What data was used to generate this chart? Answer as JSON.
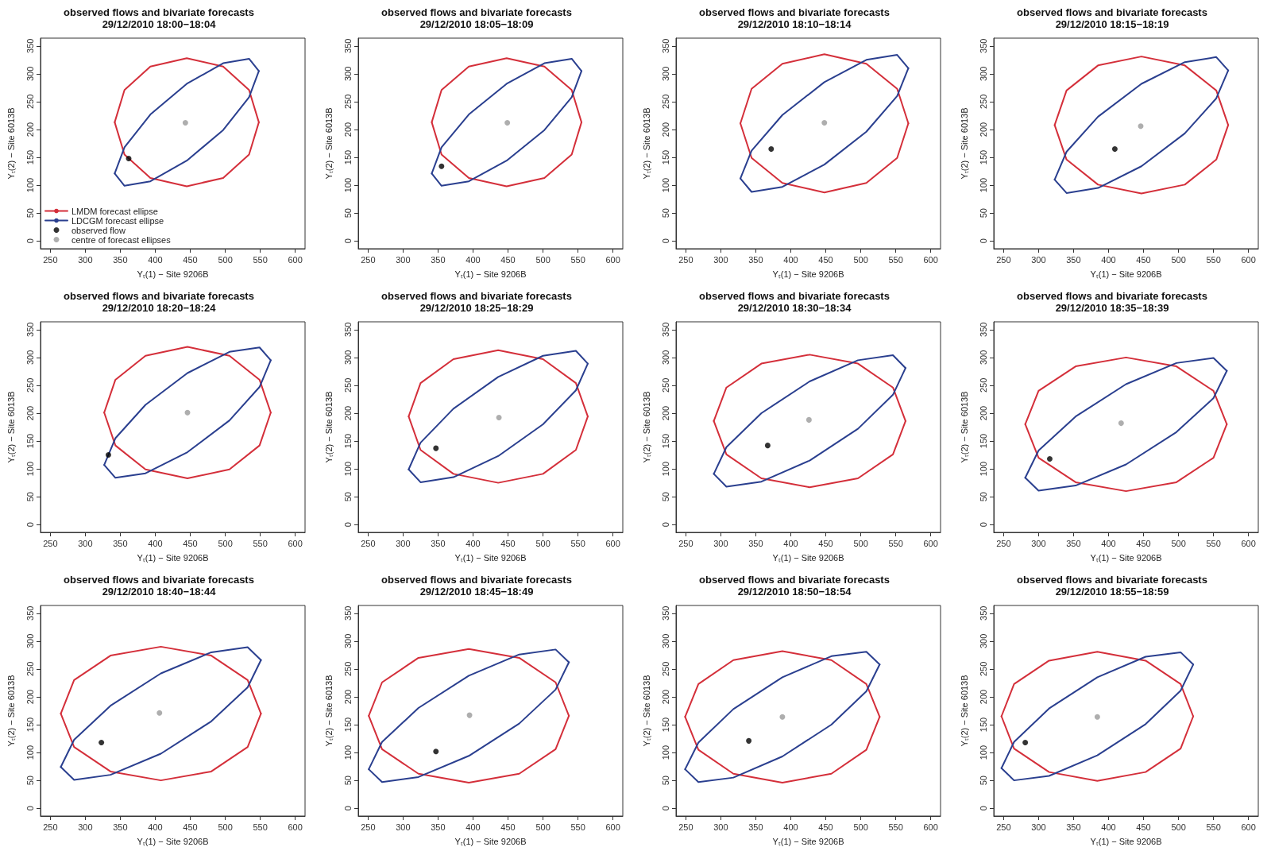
{
  "chart_data": [
    {
      "type": "line",
      "title": "observed flows and bivariate forecasts",
      "subtitle": "29/12/2010 18:00−18:04",
      "xlabel": "Yₜ(1) − Site 9206B",
      "ylabel": "Yₜ(2) − Site 6013B",
      "xlim": [
        236,
        614
      ],
      "ylim": [
        -14,
        364
      ],
      "xticks": [
        250,
        300,
        350,
        400,
        450,
        500,
        550,
        600
      ],
      "yticks": [
        0,
        50,
        100,
        150,
        200,
        250,
        300,
        350
      ],
      "grid": false,
      "marker": "none",
      "legend": "bottom left",
      "series": [
        {
          "name": "LMDM forecast ellipse",
          "color": "#d42f3a",
          "x": [
            548,
            534,
            497,
            445,
            393,
            356,
            342
          ],
          "values": [
            213,
            271,
            313,
            328,
            313,
            271,
            213
          ]
        },
        {
          "color": "#d42f3a",
          "x": [
            342,
            356,
            393,
            445,
            497,
            534,
            548
          ],
          "values": [
            213,
            155,
            113,
            98,
            113,
            155,
            213
          ]
        },
        {
          "name": "LDCGM forecast ellipse",
          "color": "#2a3f8f",
          "x": [
            548,
            534,
            497,
            445,
            393,
            356,
            342
          ],
          "values": [
            305,
            327,
            319,
            282,
            227,
            168,
            121
          ]
        },
        {
          "color": "#2a3f8f",
          "x": [
            342,
            356,
            393,
            445,
            497,
            534,
            548
          ],
          "values": [
            121,
            99,
            107,
            144,
            199,
            258,
            305
          ]
        },
        {
          "name": "observed flow",
          "type": "scatter",
          "marker": "circle",
          "color": "#000000",
          "x": [
            362
          ],
          "values": [
            148
          ]
        },
        {
          "name": "centre of forecast ellipses",
          "type": "scatter",
          "marker": "circle",
          "color": "#9a9a9a",
          "x": [
            443
          ],
          "values": [
            212
          ]
        }
      ]
    },
    {
      "type": "line",
      "title": "observed flows and bivariate forecasts",
      "subtitle": "29/12/2010 18:05−18:09",
      "xlabel": "Yₜ(1) − Site 9206B",
      "ylabel": "Yₜ(2) − Site 6013B",
      "xlim": [
        236,
        614
      ],
      "ylim": [
        -14,
        364
      ],
      "xticks": [
        250,
        300,
        350,
        400,
        450,
        500,
        550,
        600
      ],
      "yticks": [
        0,
        50,
        100,
        150,
        200,
        250,
        300,
        350
      ],
      "grid": false,
      "marker": "none",
      "series": [
        {
          "color": "#d42f3a",
          "x": [
            555,
            541,
            502,
            448,
            394,
            355,
            341
          ],
          "values": [
            213,
            271,
            313,
            328,
            313,
            271,
            213
          ]
        },
        {
          "color": "#d42f3a",
          "x": [
            341,
            355,
            394,
            448,
            502,
            541,
            555
          ],
          "values": [
            213,
            155,
            113,
            98,
            113,
            155,
            213
          ]
        },
        {
          "color": "#2a3f8f",
          "x": [
            555,
            541,
            502,
            448,
            394,
            355,
            341
          ],
          "values": [
            305,
            327,
            319,
            282,
            227,
            168,
            121
          ]
        },
        {
          "color": "#2a3f8f",
          "x": [
            341,
            355,
            394,
            448,
            502,
            541,
            555
          ],
          "values": [
            121,
            99,
            107,
            144,
            199,
            258,
            305
          ]
        },
        {
          "type": "scatter",
          "marker": "circle",
          "color": "#000000",
          "x": [
            355
          ],
          "values": [
            134
          ]
        },
        {
          "type": "scatter",
          "marker": "circle",
          "color": "#9a9a9a",
          "x": [
            449
          ],
          "values": [
            212
          ]
        }
      ]
    },
    {
      "type": "line",
      "title": "observed flows and bivariate forecasts",
      "subtitle": "29/12/2010 18:10−18:14",
      "xlabel": "Yₜ(1) − Site 9206B",
      "ylabel": "Yₜ(2) − Site 6013B",
      "xlim": [
        236,
        614
      ],
      "ylim": [
        -14,
        364
      ],
      "xticks": [
        250,
        300,
        350,
        400,
        450,
        500,
        550,
        600
      ],
      "yticks": [
        0,
        50,
        100,
        150,
        200,
        250,
        300,
        350
      ],
      "grid": false,
      "marker": "none",
      "series": [
        {
          "color": "#d42f3a",
          "x": [
            568,
            552,
            508,
            448,
            388,
            344,
            328
          ],
          "values": [
            211,
            273,
            318,
            335,
            318,
            273,
            211
          ]
        },
        {
          "color": "#d42f3a",
          "x": [
            328,
            344,
            388,
            448,
            508,
            552,
            568
          ],
          "values": [
            211,
            149,
            104,
            87,
            104,
            149,
            211
          ]
        },
        {
          "color": "#2a3f8f",
          "x": [
            568,
            552,
            508,
            448,
            388,
            344,
            328
          ],
          "values": [
            310,
            334,
            325,
            285,
            226,
            162,
            112
          ]
        },
        {
          "color": "#2a3f8f",
          "x": [
            328,
            344,
            388,
            448,
            508,
            552,
            568
          ],
          "values": [
            112,
            88,
            97,
            137,
            196,
            260,
            310
          ]
        },
        {
          "type": "scatter",
          "marker": "circle",
          "color": "#000000",
          "x": [
            372
          ],
          "values": [
            165
          ]
        },
        {
          "type": "scatter",
          "marker": "circle",
          "color": "#9a9a9a",
          "x": [
            448
          ],
          "values": [
            212
          ]
        }
      ]
    },
    {
      "type": "line",
      "title": "observed flows and bivariate forecasts",
      "subtitle": "29/12/2010 18:15−18:19",
      "xlabel": "Yₜ(1) − Site 9206B",
      "ylabel": "Yₜ(2) − Site 6013B",
      "xlim": [
        236,
        614
      ],
      "ylim": [
        -14,
        364
      ],
      "xticks": [
        250,
        300,
        350,
        400,
        450,
        500,
        550,
        600
      ],
      "yticks": [
        0,
        50,
        100,
        150,
        200,
        250,
        300,
        350
      ],
      "grid": false,
      "marker": "none",
      "series": [
        {
          "color": "#d42f3a",
          "x": [
            571,
            554,
            509,
            447,
            385,
            340,
            323
          ],
          "values": [
            208,
            270,
            315,
            331,
            315,
            270,
            208
          ]
        },
        {
          "color": "#d42f3a",
          "x": [
            323,
            340,
            385,
            447,
            509,
            554,
            571
          ],
          "values": [
            208,
            146,
            101,
            85,
            101,
            146,
            208
          ]
        },
        {
          "color": "#2a3f8f",
          "x": [
            571,
            554,
            509,
            447,
            385,
            340,
            323
          ],
          "values": [
            306,
            330,
            321,
            282,
            223,
            160,
            110
          ]
        },
        {
          "color": "#2a3f8f",
          "x": [
            323,
            340,
            385,
            447,
            509,
            554,
            571
          ],
          "values": [
            110,
            86,
            95,
            134,
            193,
            256,
            306
          ]
        },
        {
          "type": "scatter",
          "marker": "circle",
          "color": "#000000",
          "x": [
            409
          ],
          "values": [
            165
          ]
        },
        {
          "type": "scatter",
          "marker": "circle",
          "color": "#9a9a9a",
          "x": [
            446
          ],
          "values": [
            206
          ]
        }
      ]
    },
    {
      "type": "line",
      "title": "observed flows and bivariate forecasts",
      "subtitle": "29/12/2010 18:20−18:24",
      "xlabel": "Yₜ(1) − Site 9206B",
      "ylabel": "Yₜ(2) − Site 6013B",
      "xlim": [
        236,
        614
      ],
      "ylim": [
        -14,
        364
      ],
      "xticks": [
        250,
        300,
        350,
        400,
        450,
        500,
        550,
        600
      ],
      "yticks": [
        0,
        50,
        100,
        150,
        200,
        250,
        300,
        350
      ],
      "grid": false,
      "marker": "none",
      "series": [
        {
          "color": "#d42f3a",
          "x": [
            565,
            549,
            506,
            446,
            386,
            343,
            327
          ],
          "values": [
            201,
            260,
            303,
            319,
            303,
            260,
            201
          ]
        },
        {
          "color": "#d42f3a",
          "x": [
            327,
            343,
            386,
            446,
            506,
            549,
            565
          ],
          "values": [
            201,
            142,
            99,
            83,
            99,
            142,
            201
          ]
        },
        {
          "color": "#2a3f8f",
          "x": [
            565,
            549,
            506,
            446,
            386,
            343,
            327
          ],
          "values": [
            295,
            318,
            310,
            272,
            215,
            155,
            107
          ]
        },
        {
          "color": "#2a3f8f",
          "x": [
            327,
            343,
            386,
            446,
            506,
            549,
            565
          ],
          "values": [
            107,
            84,
            92,
            130,
            187,
            247,
            295
          ]
        },
        {
          "type": "scatter",
          "marker": "circle",
          "color": "#000000",
          "x": [
            333
          ],
          "values": [
            125
          ]
        },
        {
          "type": "scatter",
          "marker": "circle",
          "color": "#9a9a9a",
          "x": [
            446
          ],
          "values": [
            201
          ]
        }
      ]
    },
    {
      "type": "line",
      "title": "observed flows and bivariate forecasts",
      "subtitle": "29/12/2010 18:25−18:29",
      "xlabel": "Yₜ(1) − Site 9206B",
      "ylabel": "Yₜ(2) − Site 6013B",
      "xlim": [
        236,
        614
      ],
      "ylim": [
        -14,
        364
      ],
      "xticks": [
        250,
        300,
        350,
        400,
        450,
        500,
        550,
        600
      ],
      "yticks": [
        0,
        50,
        100,
        150,
        200,
        250,
        300,
        350
      ],
      "grid": false,
      "marker": "none",
      "series": [
        {
          "color": "#d42f3a",
          "x": [
            564,
            547,
            500,
            436,
            372,
            325,
            308
          ],
          "values": [
            194,
            254,
            297,
            313,
            297,
            254,
            194
          ]
        },
        {
          "color": "#d42f3a",
          "x": [
            308,
            325,
            372,
            436,
            500,
            547,
            564
          ],
          "values": [
            194,
            134,
            91,
            75,
            91,
            134,
            194
          ]
        },
        {
          "color": "#2a3f8f",
          "x": [
            564,
            547,
            500,
            436,
            372,
            325,
            308
          ],
          "values": [
            289,
            312,
            303,
            265,
            208,
            147,
            99
          ]
        },
        {
          "color": "#2a3f8f",
          "x": [
            308,
            325,
            372,
            436,
            500,
            547,
            564
          ],
          "values": [
            99,
            76,
            85,
            123,
            180,
            241,
            289
          ]
        },
        {
          "type": "scatter",
          "marker": "circle",
          "color": "#000000",
          "x": [
            347
          ],
          "values": [
            137
          ]
        },
        {
          "type": "scatter",
          "marker": "circle",
          "color": "#9a9a9a",
          "x": [
            437
          ],
          "values": [
            192
          ]
        }
      ]
    },
    {
      "type": "line",
      "title": "observed flows and bivariate forecasts",
      "subtitle": "29/12/2010 18:30−18:34",
      "xlabel": "Yₜ(1) − Site 9206B",
      "ylabel": "Yₜ(2) − Site 6013B",
      "xlim": [
        236,
        614
      ],
      "ylim": [
        -14,
        364
      ],
      "xticks": [
        250,
        300,
        350,
        400,
        450,
        500,
        550,
        600
      ],
      "yticks": [
        0,
        50,
        100,
        150,
        200,
        250,
        300,
        350
      ],
      "grid": false,
      "marker": "none",
      "series": [
        {
          "color": "#d42f3a",
          "x": [
            564,
            546,
            496,
            427,
            358,
            308,
            290
          ],
          "values": [
            186,
            246,
            289,
            305,
            289,
            246,
            186
          ]
        },
        {
          "color": "#d42f3a",
          "x": [
            290,
            308,
            358,
            427,
            496,
            546,
            564
          ],
          "values": [
            186,
            126,
            83,
            67,
            83,
            126,
            186
          ]
        },
        {
          "color": "#2a3f8f",
          "x": [
            564,
            546,
            496,
            427,
            358,
            308,
            290
          ],
          "values": [
            281,
            304,
            295,
            257,
            200,
            139,
            91
          ]
        },
        {
          "color": "#2a3f8f",
          "x": [
            290,
            308,
            358,
            427,
            496,
            546,
            564
          ],
          "values": [
            91,
            68,
            77,
            115,
            172,
            233,
            281
          ]
        },
        {
          "type": "scatter",
          "marker": "circle",
          "color": "#000000",
          "x": [
            367
          ],
          "values": [
            142
          ]
        },
        {
          "type": "scatter",
          "marker": "circle",
          "color": "#9a9a9a",
          "x": [
            426
          ],
          "values": [
            188
          ]
        }
      ]
    },
    {
      "type": "line",
      "title": "observed flows and bivariate forecasts",
      "subtitle": "29/12/2010 18:35−18:39",
      "xlabel": "Yₜ(1) − Site 9206B",
      "ylabel": "Yₜ(2) − Site 6013B",
      "xlim": [
        236,
        614
      ],
      "ylim": [
        -14,
        364
      ],
      "xticks": [
        250,
        300,
        350,
        400,
        450,
        500,
        550,
        600
      ],
      "yticks": [
        0,
        50,
        100,
        150,
        200,
        250,
        300,
        350
      ],
      "grid": false,
      "marker": "none",
      "series": [
        {
          "color": "#d42f3a",
          "x": [
            569,
            550,
            497,
            425,
            353,
            300,
            281
          ],
          "values": [
            180,
            240,
            284,
            300,
            284,
            240,
            180
          ]
        },
        {
          "color": "#d42f3a",
          "x": [
            281,
            300,
            353,
            425,
            497,
            550,
            569
          ],
          "values": [
            180,
            120,
            76,
            60,
            76,
            120,
            180
          ]
        },
        {
          "color": "#2a3f8f",
          "x": [
            569,
            550,
            497,
            425,
            353,
            300,
            281
          ],
          "values": [
            276,
            299,
            290,
            252,
            194,
            133,
            84
          ]
        },
        {
          "color": "#2a3f8f",
          "x": [
            281,
            300,
            353,
            425,
            497,
            550,
            569
          ],
          "values": [
            84,
            61,
            70,
            108,
            166,
            227,
            276
          ]
        },
        {
          "type": "scatter",
          "marker": "circle",
          "color": "#000000",
          "x": [
            316
          ],
          "values": [
            118
          ]
        },
        {
          "type": "scatter",
          "marker": "circle",
          "color": "#9a9a9a",
          "x": [
            418
          ],
          "values": [
            182
          ]
        }
      ]
    },
    {
      "type": "line",
      "title": "observed flows and bivariate forecasts",
      "subtitle": "29/12/2010 18:40−18:44",
      "xlabel": "Yₜ(1) − Site 9206B",
      "ylabel": "Yₜ(2) − Site 6013B",
      "xlim": [
        236,
        614
      ],
      "ylim": [
        -14,
        364
      ],
      "xticks": [
        250,
        300,
        350,
        400,
        450,
        500,
        550,
        600
      ],
      "yticks": [
        0,
        50,
        100,
        150,
        200,
        250,
        300,
        350
      ],
      "grid": false,
      "marker": "none",
      "series": [
        {
          "color": "#d42f3a",
          "x": [
            551,
            532,
            480,
            408,
            336,
            284,
            265
          ],
          "values": [
            170,
            230,
            274,
            290,
            274,
            230,
            170
          ]
        },
        {
          "color": "#d42f3a",
          "x": [
            265,
            284,
            336,
            408,
            480,
            532,
            551
          ],
          "values": [
            170,
            110,
            66,
            50,
            66,
            110,
            170
          ]
        },
        {
          "color": "#2a3f8f",
          "x": [
            551,
            532,
            480,
            408,
            336,
            284,
            265
          ],
          "values": [
            266,
            289,
            280,
            242,
            184,
            123,
            74
          ]
        },
        {
          "color": "#2a3f8f",
          "x": [
            265,
            284,
            336,
            408,
            480,
            532,
            551
          ],
          "values": [
            74,
            51,
            60,
            98,
            156,
            217,
            266
          ]
        },
        {
          "type": "scatter",
          "marker": "circle",
          "color": "#000000",
          "x": [
            323
          ],
          "values": [
            118
          ]
        },
        {
          "type": "scatter",
          "marker": "circle",
          "color": "#9a9a9a",
          "x": [
            406
          ],
          "values": [
            171
          ]
        }
      ]
    },
    {
      "type": "line",
      "title": "observed flows and bivariate forecasts",
      "subtitle": "29/12/2010 18:45−18:49",
      "xlabel": "Yₜ(1) − Site 9206B",
      "ylabel": "Yₜ(2) − Site 6013B",
      "xlim": [
        236,
        614
      ],
      "ylim": [
        -14,
        364
      ],
      "xticks": [
        250,
        300,
        350,
        400,
        450,
        500,
        550,
        600
      ],
      "yticks": [
        0,
        50,
        100,
        150,
        200,
        250,
        300,
        350
      ],
      "grid": false,
      "marker": "none",
      "series": [
        {
          "color": "#d42f3a",
          "x": [
            537,
            518,
            466,
            394,
            322,
            270,
            251
          ],
          "values": [
            166,
            226,
            270,
            286,
            270,
            226,
            166
          ]
        },
        {
          "color": "#d42f3a",
          "x": [
            251,
            270,
            322,
            394,
            466,
            518,
            537
          ],
          "values": [
            166,
            106,
            62,
            46,
            62,
            106,
            166
          ]
        },
        {
          "color": "#2a3f8f",
          "x": [
            537,
            518,
            466,
            394,
            322,
            270,
            251
          ],
          "values": [
            262,
            285,
            276,
            238,
            180,
            119,
            70
          ]
        },
        {
          "color": "#2a3f8f",
          "x": [
            251,
            270,
            322,
            394,
            466,
            518,
            537
          ],
          "values": [
            70,
            47,
            56,
            94,
            152,
            213,
            262
          ]
        },
        {
          "type": "scatter",
          "marker": "circle",
          "color": "#000000",
          "x": [
            347
          ],
          "values": [
            102
          ]
        },
        {
          "type": "scatter",
          "marker": "circle",
          "color": "#9a9a9a",
          "x": [
            395
          ],
          "values": [
            167
          ]
        }
      ]
    },
    {
      "type": "line",
      "title": "observed flows and bivariate forecasts",
      "subtitle": "29/12/2010 18:50−18:54",
      "xlabel": "Yₜ(1) − Site 9206B",
      "ylabel": "Yₜ(2) − Site 6013B",
      "xlim": [
        236,
        614
      ],
      "ylim": [
        -14,
        364
      ],
      "xticks": [
        250,
        300,
        350,
        400,
        450,
        500,
        550,
        600
      ],
      "yticks": [
        0,
        50,
        100,
        150,
        200,
        250,
        300,
        350
      ],
      "grid": false,
      "marker": "none",
      "series": [
        {
          "color": "#d42f3a",
          "x": [
            527,
            508,
            458,
            388,
            318,
            268,
            249
          ],
          "values": [
            164,
            223,
            266,
            282,
            266,
            223,
            164
          ]
        },
        {
          "color": "#d42f3a",
          "x": [
            249,
            268,
            318,
            388,
            458,
            508,
            527
          ],
          "values": [
            164,
            105,
            62,
            46,
            62,
            105,
            164
          ]
        },
        {
          "color": "#2a3f8f",
          "x": [
            527,
            508,
            458,
            388,
            318,
            268,
            249
          ],
          "values": [
            258,
            281,
            273,
            235,
            178,
            118,
            70
          ]
        },
        {
          "color": "#2a3f8f",
          "x": [
            249,
            268,
            318,
            388,
            458,
            508,
            527
          ],
          "values": [
            70,
            47,
            55,
            93,
            150,
            210,
            258
          ]
        },
        {
          "type": "scatter",
          "marker": "circle",
          "color": "#000000",
          "x": [
            340
          ],
          "values": [
            121
          ]
        },
        {
          "type": "scatter",
          "marker": "circle",
          "color": "#9a9a9a",
          "x": [
            388
          ],
          "values": [
            164
          ]
        }
      ]
    },
    {
      "type": "line",
      "title": "observed flows and bivariate forecasts",
      "subtitle": "29/12/2010 18:55−18:59",
      "xlabel": "Yₜ(1) − Site 9206B",
      "ylabel": "Yₜ(2) − Site 6013B",
      "xlim": [
        236,
        614
      ],
      "ylim": [
        -14,
        364
      ],
      "xticks": [
        250,
        300,
        350,
        400,
        450,
        500,
        550,
        600
      ],
      "yticks": [
        0,
        50,
        100,
        150,
        200,
        250,
        300,
        350
      ],
      "grid": false,
      "marker": "none",
      "series": [
        {
          "color": "#d42f3a",
          "x": [
            521,
            503,
            453,
            384,
            315,
            265,
            247
          ],
          "values": [
            165,
            223,
            265,
            281,
            265,
            223,
            165
          ]
        },
        {
          "color": "#d42f3a",
          "x": [
            247,
            265,
            315,
            384,
            453,
            503,
            521
          ],
          "values": [
            165,
            107,
            65,
            49,
            65,
            107,
            165
          ]
        },
        {
          "color": "#2a3f8f",
          "x": [
            521,
            503,
            453,
            384,
            315,
            265,
            247
          ],
          "values": [
            258,
            280,
            272,
            235,
            179,
            119,
            72
          ]
        },
        {
          "color": "#2a3f8f",
          "x": [
            247,
            265,
            315,
            384,
            453,
            503,
            521
          ],
          "values": [
            72,
            50,
            58,
            95,
            151,
            211,
            258
          ]
        },
        {
          "type": "scatter",
          "marker": "circle",
          "color": "#000000",
          "x": [
            281
          ],
          "values": [
            118
          ]
        },
        {
          "type": "scatter",
          "marker": "circle",
          "color": "#9a9a9a",
          "x": [
            384
          ],
          "values": [
            164
          ]
        }
      ]
    }
  ]
}
